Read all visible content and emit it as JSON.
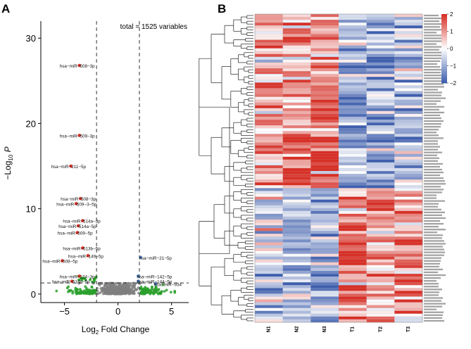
{
  "panel_a_letter": "A",
  "panel_b_letter": "B",
  "colors": {
    "up": "#d73027",
    "down": "#4575b4",
    "sig_fc": "#2ca02c",
    "ns": "#7f7f7f",
    "hm_high": "#d73027",
    "hm_mid": "#ffffff",
    "hm_low": "#3f5fae"
  },
  "chart_data": [
    {
      "type": "scatter",
      "title": "",
      "annotation": "total = 1525 variables",
      "xlabel_main": "Log",
      "xlabel_sub": "2",
      "xlabel_tail": " Fold Change",
      "ylabel_prefix": "−Log",
      "ylabel_sub": "10",
      "ylabel_tail": " P",
      "xlim": [
        -7.2,
        6.6
      ],
      "ylim": [
        -1,
        32
      ],
      "xticks": [
        -5,
        0,
        5
      ],
      "xtick_labels": [
        "−5",
        "0",
        "5"
      ],
      "yticks": [
        0,
        10,
        20,
        30
      ],
      "ytick_labels": [
        "0",
        "10",
        "20",
        "30"
      ],
      "fc_cutoffs": [
        -2,
        2
      ],
      "p_cutoff": 1.3,
      "labeled_points": [
        {
          "label": "hsa−miR−508−3p",
          "x": -3.6,
          "y": 26.8,
          "group": "up"
        },
        {
          "label": "hsa−miR−509−3p",
          "x": -3.6,
          "y": 18.6,
          "group": "up"
        },
        {
          "label": "hsa−miR−211−5p",
          "x": -4.4,
          "y": 15.0,
          "group": "up"
        },
        {
          "label": "hsa−miR−508−3p",
          "x": -3.5,
          "y": 11.2,
          "group": "up"
        },
        {
          "label": "hsa−miR−509−3−5p",
          "x": -3.9,
          "y": 10.6,
          "group": "up"
        },
        {
          "label": "hsa−miR−514a−3p",
          "x": -3.3,
          "y": 8.6,
          "group": "up"
        },
        {
          "label": "hsa−miR−514a−5p",
          "x": -3.7,
          "y": 8.0,
          "group": "up"
        },
        {
          "label": "hsa−miR−509−5p",
          "x": -3.8,
          "y": 7.2,
          "group": "up"
        },
        {
          "label": "hsa−miR−513b−5p",
          "x": -3.3,
          "y": 5.4,
          "group": "up"
        },
        {
          "label": "hsa−miR−149−5p",
          "x": -2.8,
          "y": 4.5,
          "group": "up"
        },
        {
          "label": "hsa−miR−508−5p",
          "x": -5.2,
          "y": 3.9,
          "group": "up"
        },
        {
          "label": "hsa−miR−124−3p",
          "x": -3.6,
          "y": 2.1,
          "group": "up"
        },
        {
          "label": "hsa−miR−514b−5p",
          "x": -4.3,
          "y": 1.5,
          "group": "up"
        },
        {
          "label": "hsa−miR−21−5p",
          "x": 2.1,
          "y": 4.3,
          "group": "down"
        },
        {
          "label": "hsa−miR−142−5p",
          "x": 1.9,
          "y": 2.1,
          "group": "down"
        },
        {
          "label": "hsa−miR−144−5p",
          "x": 1.9,
          "y": 1.5,
          "group": "down"
        },
        {
          "label": "hsa−miR−934",
          "x": 3.5,
          "y": 1.2,
          "group": "down"
        }
      ]
    },
    {
      "type": "heatmap",
      "columns": [
        "N1",
        "N2",
        "N3",
        "T1",
        "T2",
        "T3"
      ],
      "legend_ticks": [
        2,
        1,
        0,
        -1,
        -2
      ],
      "legend_tick_labels": [
        "2",
        "1",
        "0",
        "−1",
        "−2"
      ],
      "value_range": [
        -2,
        2
      ],
      "row_count": 108
    }
  ]
}
